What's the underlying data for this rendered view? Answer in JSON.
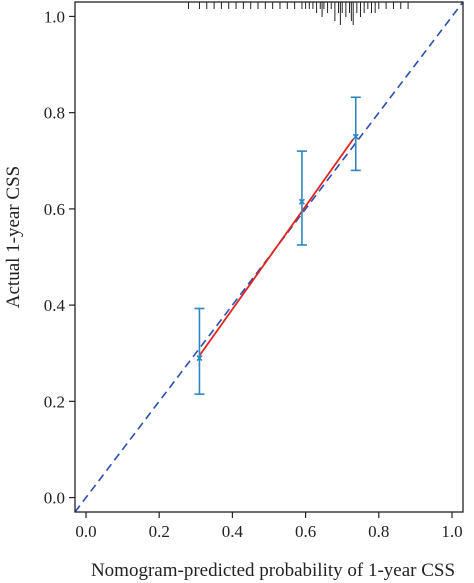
{
  "chart_data": {
    "type": "scatter",
    "title": "",
    "xlabel": "Nomogram-predicted probability of 1-year CSS",
    "ylabel": "Actual 1-year CSS",
    "xlim": [
      -0.03,
      1.03
    ],
    "ylim": [
      -0.03,
      1.03
    ],
    "x_ticks": [
      "0.0",
      "0.2",
      "0.4",
      "0.6",
      "0.8",
      "1.0"
    ],
    "y_ticks": [
      "0.0",
      "0.2",
      "0.4",
      "0.6",
      "0.8",
      "1.0"
    ],
    "grid": false,
    "legend": "none",
    "reference_line": {
      "x": [
        -0.03,
        1.03
      ],
      "y": [
        -0.03,
        1.03
      ],
      "style": "dashed",
      "color": "#2b4eb5"
    },
    "calibration_line": {
      "x": [
        0.31,
        0.73
      ],
      "y": [
        0.295,
        0.745
      ],
      "color": "#e0251e"
    },
    "points": [
      {
        "x": 0.31,
        "y": 0.29,
        "lower": 0.215,
        "upper": 0.393
      },
      {
        "x": 0.59,
        "y": 0.615,
        "lower": 0.525,
        "upper": 0.72
      },
      {
        "x": 0.737,
        "y": 0.75,
        "lower": 0.68,
        "upper": 0.832
      }
    ],
    "point_color": "#2e86c1",
    "rug": {
      "x": [
        0.28,
        0.31,
        0.33,
        0.35,
        0.37,
        0.39,
        0.41,
        0.43,
        0.45,
        0.47,
        0.49,
        0.51,
        0.53,
        0.55,
        0.57,
        0.59,
        0.6,
        0.61,
        0.62,
        0.63,
        0.64,
        0.645,
        0.65,
        0.66,
        0.67,
        0.68,
        0.69,
        0.695,
        0.7,
        0.71,
        0.72,
        0.725,
        0.73,
        0.74,
        0.75,
        0.76,
        0.77,
        0.78,
        0.79,
        0.8,
        0.82,
        0.84,
        0.86,
        0.88
      ],
      "heights": [
        1,
        1,
        1,
        1,
        1,
        1,
        1,
        1,
        1,
        1,
        1,
        1,
        1,
        1,
        1,
        1,
        1,
        1,
        1,
        2,
        1,
        3,
        1,
        2,
        1,
        4,
        2,
        5,
        2,
        3,
        2,
        4,
        5,
        2,
        3,
        2,
        1,
        2,
        2,
        1,
        1,
        1,
        1,
        1
      ]
    }
  }
}
